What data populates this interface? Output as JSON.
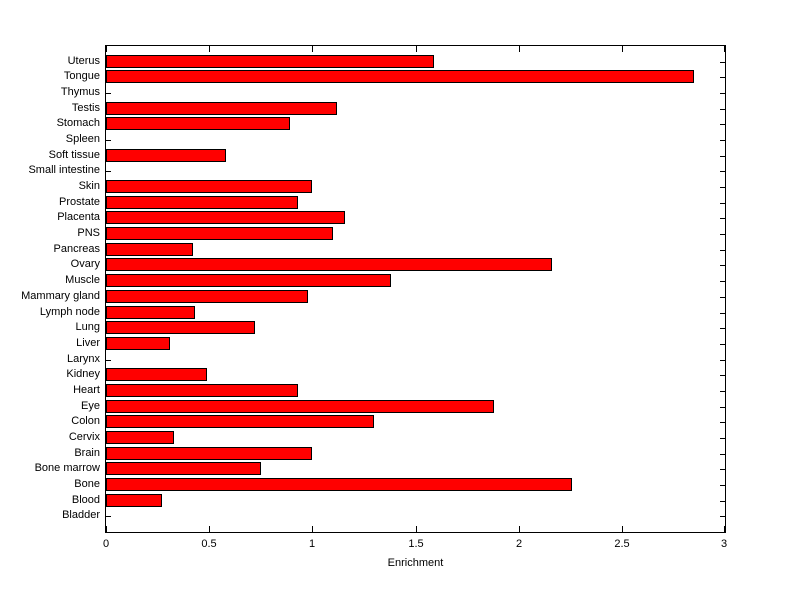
{
  "figure": {
    "background_color": "#ffffff",
    "bar_color": "#ff0000",
    "bar_edge_color": "#000000",
    "axis_color": "#000000",
    "text_color": "#000000"
  },
  "chart_data": {
    "type": "bar",
    "orientation": "horizontal",
    "title": "",
    "xlabel": "Enrichment",
    "ylabel": "",
    "xlim": [
      0,
      3
    ],
    "x_ticks": [
      0,
      0.5,
      1,
      1.5,
      2,
      2.5,
      3
    ],
    "x_tick_labels": [
      "0",
      "0.5",
      "1",
      "1.5",
      "2",
      "2.5",
      "3"
    ],
    "grid": false,
    "legend_position": "none",
    "categories": [
      "Uterus",
      "Tongue",
      "Thymus",
      "Testis",
      "Stomach",
      "Spleen",
      "Soft tissue",
      "Small intestine",
      "Skin",
      "Prostate",
      "Placenta",
      "PNS",
      "Pancreas",
      "Ovary",
      "Muscle",
      "Mammary gland",
      "Lymph node",
      "Lung",
      "Liver",
      "Larynx",
      "Kidney",
      "Heart",
      "Eye",
      "Colon",
      "Cervix",
      "Brain",
      "Bone marrow",
      "Bone",
      "Blood",
      "Bladder"
    ],
    "values": [
      1.59,
      2.85,
      0,
      1.12,
      0.89,
      0,
      0.58,
      0,
      1.0,
      0.93,
      1.16,
      1.1,
      0.42,
      2.16,
      1.38,
      0.98,
      0.43,
      0.72,
      0.31,
      0,
      0.49,
      0.93,
      1.88,
      1.3,
      0.33,
      1.0,
      0.75,
      2.26,
      0.27,
      0
    ]
  }
}
